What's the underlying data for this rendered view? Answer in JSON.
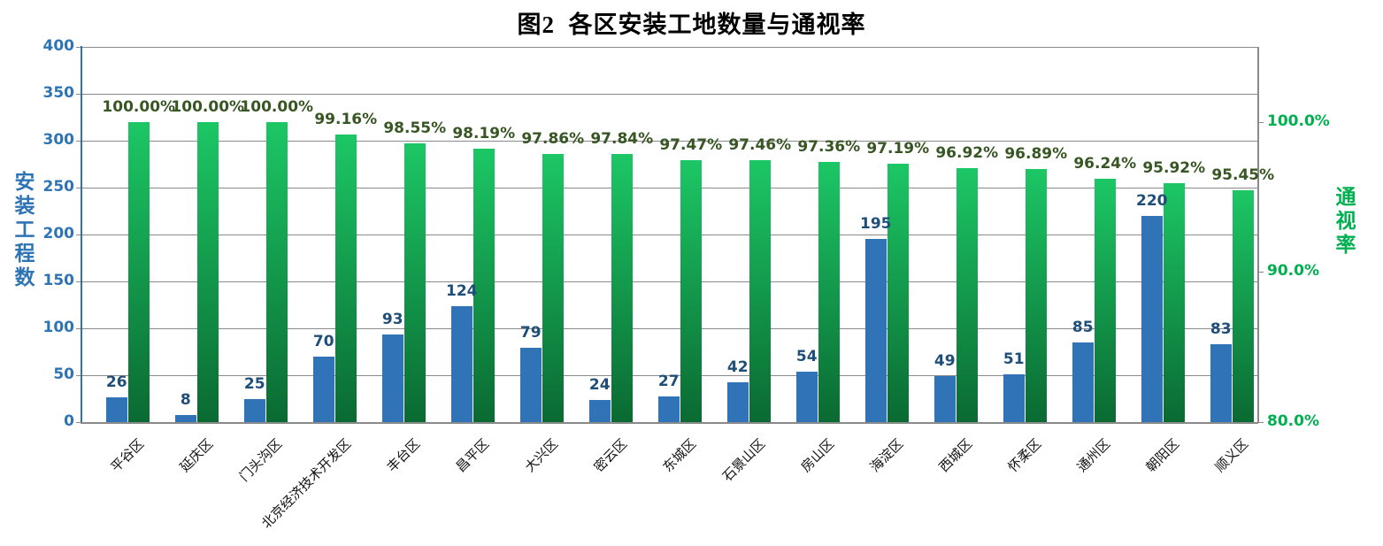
{
  "title": "图2  各区安装工地数量与通视率",
  "chart_data": {
    "type": "bar",
    "subtype": "clustered-dual-axis",
    "title": "图2  各区安装工地数量与通视率",
    "grid": true,
    "legend_position": "none",
    "categories": [
      "平谷区",
      "延庆区",
      "门头沟区",
      "北京经济技术开发区",
      "丰台区",
      "昌平区",
      "大兴区",
      "密云区",
      "东城区",
      "石景山区",
      "房山区",
      "海淀区",
      "西城区",
      "怀柔区",
      "通州区",
      "朝阳区",
      "顺义区"
    ],
    "series": [
      {
        "name": "安装工程数",
        "axis": "left",
        "values": [
          26,
          8,
          25,
          70,
          93,
          124,
          79,
          24,
          27,
          42,
          54,
          195,
          49,
          51,
          85,
          220,
          83
        ],
        "labels": [
          "26",
          "8",
          "25",
          "70",
          "93",
          "124",
          "79",
          "24",
          "27",
          "42",
          "54",
          "195",
          "49",
          "51",
          "85",
          "220",
          "83"
        ],
        "bar_color": "#3074B7",
        "label_color": "#1F4E79"
      },
      {
        "name": "通视率",
        "axis": "right",
        "values": [
          100.0,
          100.0,
          100.0,
          99.16,
          98.55,
          98.19,
          97.86,
          97.84,
          97.47,
          97.46,
          97.36,
          97.19,
          96.92,
          96.89,
          96.24,
          95.92,
          95.45
        ],
        "labels": [
          "100.00%",
          "100.00%",
          "100.00%",
          "99.16%",
          "98.55%",
          "98.19%",
          "97.86%",
          "97.84%",
          "97.47%",
          "97.46%",
          "97.36%",
          "97.19%",
          "96.92%",
          "96.89%",
          "96.24%",
          "95.92%",
          "95.45%"
        ],
        "bar_color_top": "#1CC765",
        "bar_color_bottom": "#0A6A32",
        "label_color": "#375623"
      }
    ],
    "left_axis": {
      "title": "安装工程数",
      "min": 0,
      "max": 400,
      "step": 50,
      "tick_labels": [
        "0",
        "50",
        "100",
        "150",
        "200",
        "250",
        "300",
        "350",
        "400"
      ],
      "color": "#2E74B5"
    },
    "right_axis": {
      "title": "通视率",
      "min": 80,
      "max": 105,
      "ticks": [
        80,
        90,
        100
      ],
      "tick_labels": [
        "80.0%",
        "90.0%",
        "100.0%"
      ],
      "color": "#00B050"
    },
    "grid_color": "#8a8a8a"
  }
}
